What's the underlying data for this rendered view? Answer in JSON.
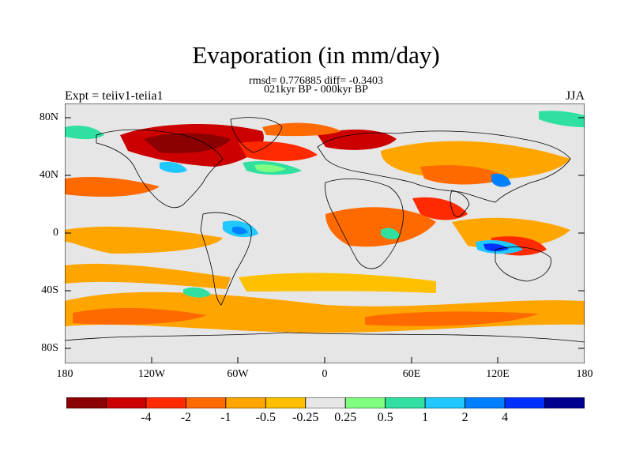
{
  "title": "Evaporation (in mm/day)",
  "subtitle_stats": "rmsd= 0.776885 diff= -0.3403",
  "subtitle_period": "021kyr BP - 000kyr BP",
  "left_label": "Expt = teiiv1-teiia1",
  "right_label": "JJA",
  "lat_ticks": [
    "80N",
    "40N",
    "0",
    "40S",
    "80S"
  ],
  "lon_ticks": [
    "180",
    "120W",
    "60W",
    "0",
    "60E",
    "120E",
    "180"
  ],
  "colorbar": {
    "colors": [
      "#8b0000",
      "#cc0000",
      "#ff2a00",
      "#ff6a00",
      "#ffa500",
      "#ffc000",
      "#e6e6e6",
      "#80ff80",
      "#30e0a0",
      "#20c8ff",
      "#0080ff",
      "#0030ff",
      "#000090"
    ],
    "labels": [
      "-4",
      "-2",
      "-1",
      "-0.5",
      "-0.25",
      "0.25",
      "0.5",
      "1",
      "2",
      "4"
    ]
  }
}
